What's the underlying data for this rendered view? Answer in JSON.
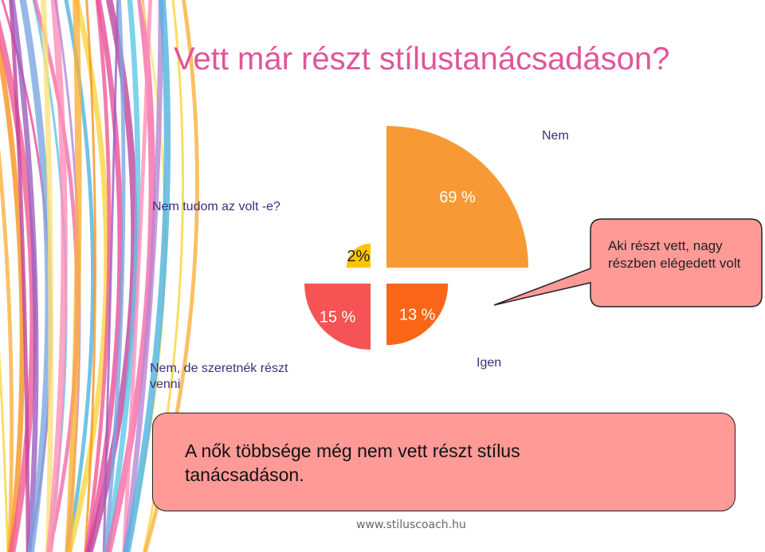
{
  "title": "Vett már részt stílustanácsadáson?",
  "chart_data": {
    "type": "pie",
    "categories": [
      "Nem",
      "Nem tudom az volt -e?",
      "Nem, de szeretnék részt venni",
      "Igen"
    ],
    "values": [
      69,
      2,
      15,
      13
    ],
    "value_labels": [
      "69 %",
      "2%",
      "15 %",
      "13 %"
    ],
    "colors": [
      "#f79a35",
      "#fcc500",
      "#f65454",
      "#fa6618"
    ]
  },
  "callout": {
    "text": "Aki részt vett, nagy részben elégedett volt"
  },
  "bottom_box": {
    "text": "A nők többsége még nem vett részt stílus tanácsadáson."
  },
  "footer": "www.stiluscoach.hu",
  "colors": {
    "title": "#e0559a",
    "label": "#3a2f7a",
    "box_fill": "#ff9a97"
  }
}
